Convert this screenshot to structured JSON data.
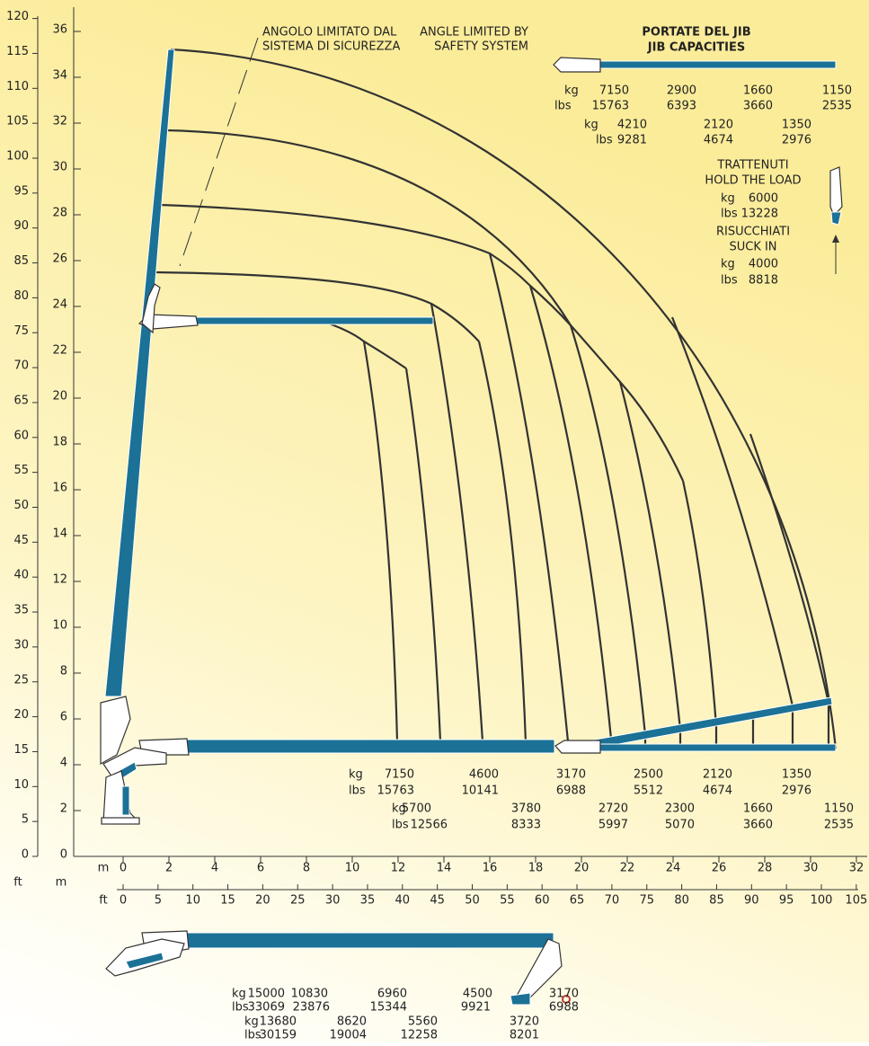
{
  "axes": {
    "left_ft": {
      "unit": "ft",
      "ticks": [
        0,
        5,
        10,
        15,
        20,
        25,
        30,
        35,
        40,
        45,
        50,
        55,
        60,
        65,
        70,
        75,
        80,
        85,
        90,
        95,
        100,
        105,
        110,
        115,
        120
      ]
    },
    "left_m": {
      "unit": "m",
      "ticks": [
        0,
        2,
        4,
        6,
        8,
        10,
        12,
        14,
        16,
        18,
        20,
        22,
        24,
        26,
        28,
        30,
        32,
        34,
        36
      ]
    },
    "bottom_m": {
      "unit": "m",
      "ticks": [
        0,
        2,
        4,
        6,
        8,
        10,
        12,
        14,
        16,
        18,
        20,
        22,
        24,
        26,
        28,
        30,
        32
      ]
    },
    "bottom_ft": {
      "unit": "ft",
      "ticks": [
        0,
        5,
        10,
        15,
        20,
        25,
        30,
        35,
        40,
        45,
        50,
        55,
        60,
        65,
        70,
        75,
        80,
        85,
        90,
        95,
        100,
        105
      ]
    }
  },
  "angle_note": {
    "it": [
      "ANGOLO LIMITATO DAL",
      "SISTEMA DI SICUREZZA"
    ],
    "en": [
      "ANGLE LIMITED BY",
      "SAFETY SYSTEM"
    ]
  },
  "jib_capacities": {
    "title": [
      "PORTATE DEL JIB",
      "JIB CAPACITIES"
    ],
    "rows": [
      {
        "unit": "kg",
        "values": [
          7150,
          2900,
          1660,
          1150
        ]
      },
      {
        "unit": "lbs",
        "values": [
          15763,
          6393,
          3660,
          2535
        ]
      },
      {
        "unit": "kg",
        "values": [
          4210,
          2120,
          1350
        ]
      },
      {
        "unit": "lbs",
        "values": [
          9281,
          4674,
          2976
        ]
      }
    ]
  },
  "jib_hold": {
    "hold": [
      "TRATTENUTI",
      "HOLD THE LOAD"
    ],
    "hold_rows": [
      {
        "unit": "kg",
        "value": 6000
      },
      {
        "unit": "lbs",
        "value": 13228
      }
    ],
    "suck": [
      "RISUCCHIATI",
      "SUCK IN"
    ],
    "suck_rows": [
      {
        "unit": "kg",
        "value": 4000
      },
      {
        "unit": "lbs",
        "value": 8818
      }
    ]
  },
  "main_capacities": {
    "rows": [
      {
        "unit": "kg",
        "values": [
          7150,
          4600,
          3170,
          2500,
          2120,
          1350
        ]
      },
      {
        "unit": "lbs",
        "values": [
          15763,
          10141,
          6988,
          5512,
          4674,
          2976
        ]
      },
      {
        "unit": "kg",
        "values": [
          5700,
          3780,
          2720,
          2300,
          1660,
          1150
        ]
      },
      {
        "unit": "lbs",
        "values": [
          12566,
          8333,
          5997,
          5070,
          3660,
          2535
        ]
      }
    ]
  },
  "transport_capacities": {
    "rows": [
      {
        "unit": "kg",
        "values": [
          15000,
          10830,
          6960,
          4500,
          3170
        ]
      },
      {
        "unit": "lbs",
        "values": [
          33069,
          23876,
          15344,
          9921,
          6988
        ]
      },
      {
        "unit": "kg",
        "values": [
          13680,
          8620,
          5560,
          3720
        ]
      },
      {
        "unit": "lbs",
        "values": [
          30159,
          19004,
          12258,
          8201
        ]
      }
    ]
  }
}
